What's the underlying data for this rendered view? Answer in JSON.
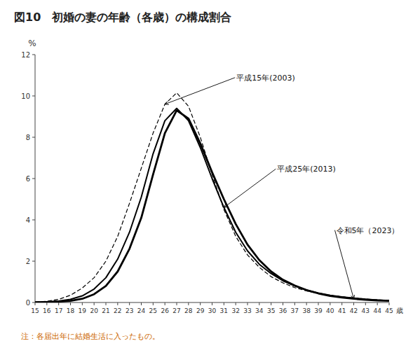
{
  "chart_data": {
    "type": "line",
    "title": "図10　初婚の妻の年齢（各歳）の構成割合",
    "x_label": "歳",
    "y_label": "%",
    "note": "注：各届出年に結婚生活に入ったもの。",
    "note_color": "#cc6600",
    "x": [
      15,
      16,
      17,
      18,
      19,
      20,
      21,
      22,
      23,
      24,
      25,
      26,
      27,
      28,
      29,
      30,
      31,
      32,
      33,
      34,
      35,
      36,
      37,
      38,
      39,
      40,
      41,
      42,
      43,
      44,
      45
    ],
    "xlim": [
      15,
      45
    ],
    "xticks": [
      15,
      16,
      17,
      18,
      19,
      20,
      21,
      22,
      23,
      24,
      25,
      26,
      27,
      28,
      29,
      30,
      31,
      32,
      33,
      34,
      35,
      36,
      37,
      38,
      39,
      40,
      41,
      42,
      43,
      44,
      45
    ],
    "ylim": [
      0,
      12
    ],
    "yticks": [
      0,
      2,
      4,
      6,
      8,
      10,
      12
    ],
    "grid": false,
    "series": [
      {
        "name": "平成15年(2003)",
        "color": "#000000",
        "line_style": "dashed",
        "values": [
          0.02,
          0.06,
          0.15,
          0.35,
          0.7,
          1.2,
          2.0,
          3.2,
          4.8,
          6.5,
          8.2,
          9.6,
          10.15,
          9.5,
          8.0,
          6.2,
          4.5,
          3.2,
          2.3,
          1.7,
          1.25,
          0.95,
          0.72,
          0.56,
          0.44,
          0.35,
          0.28,
          0.22,
          0.17,
          0.13,
          0.1
        ]
      },
      {
        "name": "平成25年(2013)",
        "color": "#000000",
        "line_style": "solid",
        "values": [
          0.01,
          0.03,
          0.07,
          0.15,
          0.32,
          0.65,
          1.2,
          2.1,
          3.4,
          5.1,
          7.2,
          8.8,
          9.4,
          8.8,
          7.5,
          6.0,
          4.6,
          3.4,
          2.5,
          1.85,
          1.4,
          1.05,
          0.8,
          0.6,
          0.46,
          0.35,
          0.27,
          0.21,
          0.16,
          0.12,
          0.09
        ]
      },
      {
        "name": "令和5年（2023）",
        "color": "#000000",
        "line_style": "solid",
        "values": [
          0.01,
          0.02,
          0.04,
          0.08,
          0.18,
          0.4,
          0.8,
          1.5,
          2.6,
          4.1,
          6.2,
          8.2,
          9.3,
          8.9,
          7.7,
          6.3,
          5.0,
          3.8,
          2.8,
          2.05,
          1.5,
          1.1,
          0.82,
          0.6,
          0.44,
          0.32,
          0.24,
          0.18,
          0.13,
          0.1,
          0.08
        ]
      }
    ]
  }
}
